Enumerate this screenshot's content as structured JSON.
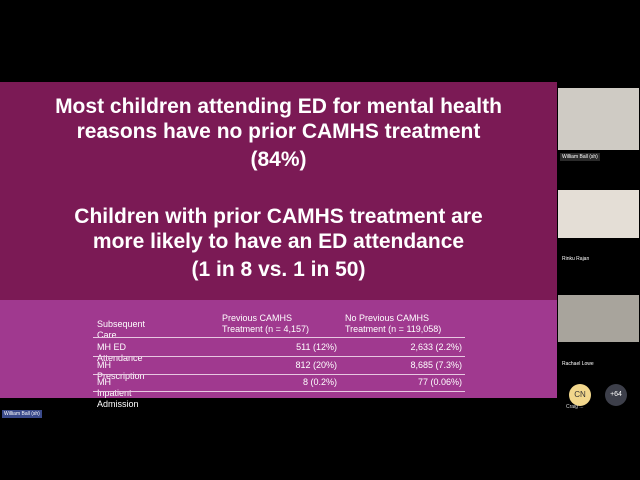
{
  "slide": {
    "headline_1": [
      "Most children attending ED for mental health",
      "reasons have no prior CAMHS treatment",
      "(84%)"
    ],
    "headline_2": [
      "Children with prior CAMHS treatment are",
      "more likely to have an ED attendance",
      "(1 in 8 vs. 1 in 50)"
    ],
    "table": {
      "header": [
        "Subsequent Care",
        "Previous CAMHS Treatment (n = 4,157)",
        "No Previous CAMHS Treatment (n = 119,058)"
      ],
      "rows": [
        [
          "MH ED Attendance",
          "511 (12%)",
          "2,633 (2.2%)"
        ],
        [
          "MH Prescription",
          "812 (20%)",
          "8,685 (7.3%)"
        ],
        [
          "MH Inpatient Admission",
          "8 (0.2%)",
          "77 (0.06%)"
        ]
      ]
    }
  },
  "presenter_label": "William Ball (sh)",
  "participants": [
    {
      "name": "William Ball (sh)"
    },
    {
      "name": "Rinku Rajan"
    },
    {
      "name": "Rachael Lowe"
    }
  ],
  "avatar": {
    "initials": "CN",
    "name": "Craig ..."
  },
  "more": "+64"
}
